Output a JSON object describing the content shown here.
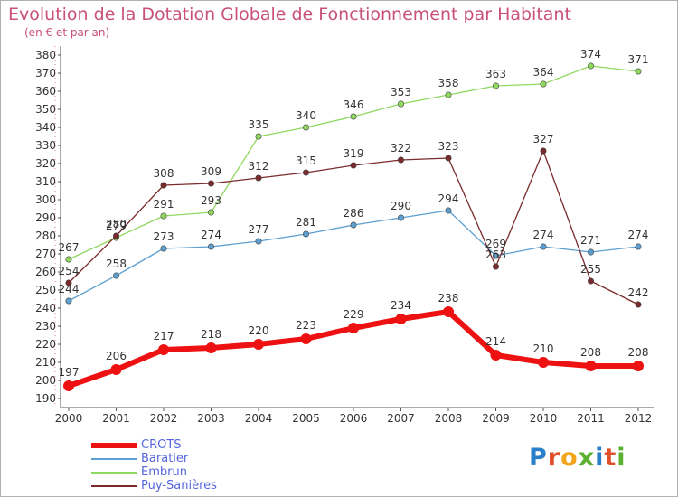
{
  "title": "Evolution de la Dotation Globale de Fonctionnement par Habitant",
  "subtitle": "(en € et par an)",
  "logo": {
    "text": "Proxiti",
    "letter_colors": [
      "#2a7fc9",
      "#e0502a",
      "#f2a51a",
      "#5bb030",
      "#2a7fc9",
      "#e0502a",
      "#5bb030"
    ]
  },
  "chart_data": {
    "type": "line",
    "title": "Evolution de la Dotation Globale de Fonctionnement par Habitant",
    "subtitle": "(en € et par an)",
    "xlabel": "",
    "ylabel": "",
    "x": [
      "2000",
      "2001",
      "2002",
      "2003",
      "2004",
      "2005",
      "2006",
      "2007",
      "2008",
      "2009",
      "2010",
      "2011",
      "2012"
    ],
    "ylim": [
      190,
      380
    ],
    "yticks": [
      "190",
      "200",
      "210",
      "220",
      "230",
      "240",
      "250",
      "260",
      "270",
      "280",
      "290",
      "300",
      "310",
      "320",
      "330",
      "340",
      "350",
      "360",
      "370",
      "380"
    ],
    "grid": false,
    "legend_position": "bottom-left",
    "series": [
      {
        "name": "CROTS",
        "color": "#ee1111",
        "values": [
          197,
          206,
          217,
          218,
          220,
          223,
          229,
          234,
          238,
          214,
          210,
          208,
          208
        ],
        "labels": [
          "197",
          "206",
          "217",
          "218",
          "220",
          "223",
          "229",
          "234",
          "238",
          "214",
          "210",
          "208",
          "208"
        ]
      },
      {
        "name": "Baratier",
        "color": "#5c9fd0",
        "values": [
          244,
          258,
          273,
          274,
          277,
          281,
          286,
          290,
          294,
          269,
          274,
          271,
          274
        ],
        "labels": [
          "244",
          "258",
          "273",
          "274",
          "277",
          "281",
          "286",
          "290",
          "294",
          "269",
          "274",
          "271",
          "274"
        ]
      },
      {
        "name": "Embrun",
        "color": "#90d860",
        "values": [
          267,
          279,
          291,
          293,
          335,
          340,
          346,
          353,
          358,
          363,
          364,
          374,
          371
        ],
        "labels": [
          "267",
          "279",
          "291",
          "293",
          "335",
          "340",
          "346",
          "353",
          "358",
          "363",
          "364",
          "374",
          "371"
        ]
      },
      {
        "name": "Puy-Sanières",
        "color": "#7a2a2a",
        "values": [
          254,
          280,
          308,
          309,
          312,
          315,
          319,
          322,
          323,
          263,
          327,
          255,
          242
        ],
        "labels": [
          "254",
          "280",
          "308",
          "309",
          "312",
          "315",
          "319",
          "322",
          "323",
          "263",
          "327",
          "255",
          "242"
        ]
      }
    ]
  }
}
